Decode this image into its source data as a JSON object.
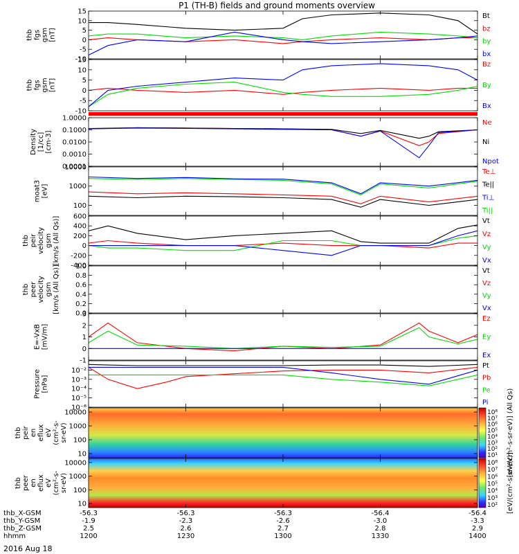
{
  "title": "P1 (TH-B) fields and ground moments overview",
  "date_label": "2016 Aug 18",
  "x_axis": {
    "row_labels": [
      "thb_X-GSM",
      "thb_Y-GSM",
      "thb_Z-GSM",
      "hhmm"
    ],
    "ticks": [
      {
        "hhmm": "1200",
        "x_gsm": "-56.3",
        "y_gsm": "-1.9",
        "z_gsm": "2.5"
      },
      {
        "hhmm": "1230",
        "x_gsm": "-56.3",
        "y_gsm": "-2.3",
        "z_gsm": "2.6"
      },
      {
        "hhmm": "1300",
        "x_gsm": "-56.3",
        "y_gsm": "-2.6",
        "z_gsm": "2.7"
      },
      {
        "hhmm": "1330",
        "x_gsm": "-56.4",
        "y_gsm": "-3.0",
        "z_gsm": "2.8"
      },
      {
        "hhmm": "1400",
        "x_gsm": "-56.4",
        "y_gsm": "-3.3",
        "z_gsm": "2.9"
      }
    ]
  },
  "colors": {
    "black": "#000000",
    "red": "#ff0000",
    "green": "#00dd00",
    "blue": "#0000ff"
  },
  "chart_data": [
    {
      "type": "line",
      "ylabel": [
        "thb",
        "fgs",
        "gsm",
        "[nT]"
      ],
      "ylim": [
        -10,
        15
      ],
      "yticks": [
        "15",
        "10",
        "5",
        "0",
        "-5",
        "-10"
      ],
      "tick_values": [
        15,
        10,
        5,
        0,
        -5,
        -10
      ],
      "x_hours": [
        12.0,
        12.1,
        12.25,
        12.5,
        12.75,
        13.0,
        13.1,
        13.25,
        13.5,
        13.75,
        13.9,
        14.0
      ],
      "series": [
        {
          "name": "Bt",
          "color": "black",
          "values": [
            9,
            9,
            8,
            6,
            5,
            6,
            11,
            13,
            14,
            13,
            10,
            3
          ]
        },
        {
          "name": "bz",
          "color": "red",
          "values": [
            0,
            1,
            0,
            -1,
            0,
            -2,
            -1,
            0,
            1,
            0,
            1,
            1
          ]
        },
        {
          "name": "by",
          "color": "green",
          "values": [
            2,
            3,
            3,
            1,
            2,
            1,
            0,
            2,
            4,
            3,
            2,
            1
          ]
        },
        {
          "name": "bx",
          "color": "blue",
          "values": [
            -8,
            -3,
            0,
            -1,
            4,
            0,
            -1,
            -2,
            -1,
            0,
            1,
            2
          ]
        }
      ]
    },
    {
      "type": "line",
      "ylabel": [
        "thb",
        "fgs",
        "gsm",
        "[nT]"
      ],
      "ylim": [
        -10,
        15
      ],
      "yticks": [
        "15",
        "10",
        "5",
        "0",
        "-5",
        "-10"
      ],
      "tick_values": [
        15,
        10,
        5,
        0,
        -5,
        -10
      ],
      "x_hours": [
        12.0,
        12.1,
        12.25,
        12.5,
        12.75,
        13.0,
        13.1,
        13.25,
        13.5,
        13.75,
        13.9,
        14.0
      ],
      "series": [
        {
          "name": "Bz",
          "color": "red",
          "values": [
            0,
            1,
            0,
            -1,
            0,
            -2,
            -1,
            0,
            1,
            0,
            1,
            1
          ]
        },
        {
          "name": "By",
          "color": "green",
          "values": [
            -8,
            -2,
            1,
            3,
            4,
            -1,
            -2,
            -3,
            -3,
            -2,
            0,
            2
          ]
        },
        {
          "name": "Bx",
          "color": "blue",
          "values": [
            -8,
            0,
            2,
            4,
            6,
            5,
            10,
            12,
            13,
            12,
            10,
            5
          ]
        }
      ]
    },
    {
      "type": "line",
      "scale": "log",
      "ylabel": [
        "Density",
        "[1/cc]",
        "[cm-3]"
      ],
      "ylim": [
        0.0001,
        1.0
      ],
      "yticks": [
        "1.0000",
        "0.1000",
        "0.0100",
        "0.0010",
        "0.0001"
      ],
      "tick_values": [
        1.0,
        0.1,
        0.01,
        0.001,
        0.0001
      ],
      "x_hours": [
        12.0,
        12.25,
        12.5,
        12.75,
        13.0,
        13.25,
        13.4,
        13.5,
        13.7,
        13.75,
        13.8,
        14.0
      ],
      "series": [
        {
          "name": "Ne",
          "color": "red",
          "values": [
            0.12,
            0.15,
            0.14,
            0.13,
            0.12,
            0.1,
            0.03,
            0.08,
            0.005,
            0.01,
            0.05,
            0.1
          ]
        },
        {
          "name": "Ni",
          "color": "black",
          "values": [
            0.13,
            0.15,
            0.14,
            0.13,
            0.12,
            0.11,
            0.05,
            0.09,
            0.02,
            0.03,
            0.07,
            0.1
          ]
        },
        {
          "name": "Npot",
          "color": "blue",
          "values": [
            0.12,
            0.14,
            0.13,
            0.12,
            0.11,
            0.1,
            0.03,
            0.08,
            0.0005,
            0.005,
            0.06,
            0.1
          ]
        }
      ]
    },
    {
      "type": "line",
      "scale": "log",
      "ylabel": [
        "moat3",
        "[eV]"
      ],
      "ylim": [
        30,
        10000
      ],
      "yticks": [
        "10000",
        "1000",
        "100"
      ],
      "tick_values": [
        10000,
        1000,
        100
      ],
      "x_hours": [
        12.0,
        12.25,
        12.5,
        12.75,
        13.0,
        13.25,
        13.4,
        13.5,
        13.75,
        14.0
      ],
      "series": [
        {
          "name": "Te⊥",
          "color": "red",
          "values": [
            500,
            400,
            450,
            400,
            350,
            300,
            120,
            300,
            150,
            300
          ]
        },
        {
          "name": "Te||",
          "color": "black",
          "values": [
            300,
            250,
            300,
            280,
            250,
            200,
            80,
            200,
            100,
            200
          ]
        },
        {
          "name": "Ti⊥",
          "color": "blue",
          "values": [
            3000,
            2500,
            2800,
            2400,
            2300,
            1500,
            400,
            1500,
            1000,
            2000
          ]
        },
        {
          "name": "Ti||",
          "color": "green",
          "values": [
            2500,
            2200,
            2500,
            2200,
            2000,
            1300,
            350,
            1300,
            800,
            1800
          ]
        }
      ]
    },
    {
      "type": "line",
      "ylabel": [
        "thb",
        "peir",
        "velocity",
        "gsm",
        "[km/s (All Qs)]"
      ],
      "ylim": [
        -400,
        600
      ],
      "yticks": [
        "600",
        "400",
        "200",
        "0",
        "-200",
        "-400"
      ],
      "tick_values": [
        600,
        400,
        200,
        0,
        -200,
        -400
      ],
      "x_hours": [
        12.0,
        12.1,
        12.25,
        12.5,
        12.75,
        13.0,
        13.25,
        13.4,
        13.5,
        13.75,
        13.9,
        14.0
      ],
      "series": [
        {
          "name": "Vt",
          "color": "black",
          "values": [
            300,
            400,
            250,
            120,
            200,
            250,
            300,
            80,
            50,
            50,
            350,
            420
          ]
        },
        {
          "name": "Vz",
          "color": "red",
          "values": [
            50,
            100,
            50,
            0,
            0,
            50,
            0,
            0,
            0,
            -50,
            50,
            50
          ]
        },
        {
          "name": "Vy",
          "color": "green",
          "values": [
            0,
            -50,
            -50,
            -100,
            -100,
            100,
            100,
            0,
            0,
            0,
            150,
            200
          ]
        },
        {
          "name": "Vx",
          "color": "blue",
          "values": [
            0,
            0,
            0,
            0,
            0,
            -100,
            -200,
            0,
            0,
            0,
            200,
            300
          ]
        }
      ]
    },
    {
      "type": "line",
      "ylabel": [
        "thb",
        "peer",
        "velocity",
        "gsm",
        "[km/s (All Qs)]"
      ],
      "ylim": [
        0.0,
        1.0
      ],
      "yticks": [
        "1.0",
        "0.8",
        "0.6",
        "0.4",
        "0.2",
        "0.0"
      ],
      "tick_values": [
        1.0,
        0.8,
        0.6,
        0.4,
        0.2,
        0.0
      ],
      "x_hours": [],
      "series": [
        {
          "name": "Vt",
          "color": "black",
          "values": []
        },
        {
          "name": "Vz",
          "color": "red",
          "values": []
        },
        {
          "name": "Vy",
          "color": "green",
          "values": []
        },
        {
          "name": "Vx",
          "color": "blue",
          "values": []
        }
      ]
    },
    {
      "type": "line",
      "ylabel": [
        "E=-VxB",
        "[mV/m]"
      ],
      "ylim": [
        -1,
        3
      ],
      "yticks": [
        "3",
        "2",
        "1",
        "0",
        "-1"
      ],
      "tick_values": [
        3,
        2,
        1,
        0,
        -1
      ],
      "x_hours": [
        12.0,
        12.1,
        12.25,
        12.5,
        12.75,
        13.0,
        13.25,
        13.5,
        13.7,
        13.75,
        13.9,
        14.0
      ],
      "series": [
        {
          "name": "Ez",
          "color": "red",
          "values": [
            1,
            2.2,
            0.5,
            0,
            -0.2,
            0.2,
            0,
            0.3,
            2.2,
            1.5,
            0.5,
            1.2
          ]
        },
        {
          "name": "Ey",
          "color": "green",
          "values": [
            0.5,
            1.5,
            0.3,
            0.2,
            0,
            0.2,
            0.1,
            0.2,
            1.8,
            1.0,
            0.4,
            0.8
          ]
        },
        {
          "name": "Ex",
          "color": "blue",
          "values": [
            0,
            0,
            0,
            0,
            0,
            0,
            0,
            0,
            0,
            0,
            0,
            0
          ]
        }
      ]
    },
    {
      "type": "line",
      "scale": "log",
      "ylabel": [
        "Pressure",
        "[nPa]"
      ],
      "ylim": [
        1e-06,
        0.1
      ],
      "yticks": [
        "10⁻²",
        "10⁻³",
        "10⁻⁴",
        "10⁻⁵",
        "10⁻⁶"
      ],
      "tick_values": [
        0.01,
        0.001,
        0.0001,
        1e-05,
        1e-06
      ],
      "x_hours": [
        12.0,
        12.1,
        12.25,
        12.4,
        12.5,
        12.75,
        13.0,
        13.25,
        13.5,
        13.75,
        14.0
      ],
      "series": [
        {
          "name": "Pt",
          "color": "black",
          "values": [
            0.04,
            0.035,
            0.03,
            0.03,
            0.03,
            0.03,
            0.03,
            0.035,
            0.035,
            0.025,
            0.04
          ]
        },
        {
          "name": "Pb",
          "color": "red",
          "values": [
            0.02,
            0.001,
            0.0001,
            0.0005,
            0.002,
            0.004,
            0.008,
            0.01,
            0.01,
            0.005,
            0.02
          ]
        },
        {
          "name": "Pe",
          "color": "green",
          "values": [
            0.003,
            0.003,
            0.003,
            0.003,
            0.003,
            0.003,
            0.003,
            0.001,
            0.0005,
            0.0002,
            0.003
          ]
        },
        {
          "name": "Pi",
          "color": "blue",
          "values": [
            0.02,
            0.02,
            0.02,
            0.02,
            0.02,
            0.02,
            0.02,
            0.005,
            0.001,
            0.0003,
            0.01
          ]
        }
      ]
    },
    {
      "type": "heatmap",
      "ylabel": [
        "thb",
        "peir",
        "en",
        "eflux",
        "eV",
        "(cm²-s-",
        "sr-eV)"
      ],
      "scale": "log",
      "ylim": [
        5,
        20000
      ],
      "yticks": [
        "10000",
        "1000",
        "100",
        "10"
      ],
      "tick_values": [
        10000,
        1000,
        100,
        10
      ],
      "colorbar": {
        "label": "[eV/(cm²-s-sr-eV)] (All Qs)",
        "ticks": [
          "10⁸",
          "10⁷",
          "10⁶",
          "10⁵",
          "10⁴",
          "10³",
          "10²",
          "10¹"
        ]
      }
    },
    {
      "type": "heatmap",
      "ylabel": [
        "thb",
        "peer",
        "en",
        "eflux",
        "eV",
        "(cm²-s-",
        "sr-eV)"
      ],
      "scale": "log",
      "ylim": [
        5,
        20000
      ],
      "yticks": [
        "10000",
        "1000",
        "100",
        "10"
      ],
      "tick_values": [
        10000,
        1000,
        100,
        10
      ],
      "colorbar": {
        "label": "[eV/(cm²-s-sr-eV)]",
        "ticks": [
          "10⁸",
          "10⁷",
          "10⁶",
          "10⁵",
          "10⁴",
          "10³",
          "10²"
        ]
      }
    }
  ]
}
